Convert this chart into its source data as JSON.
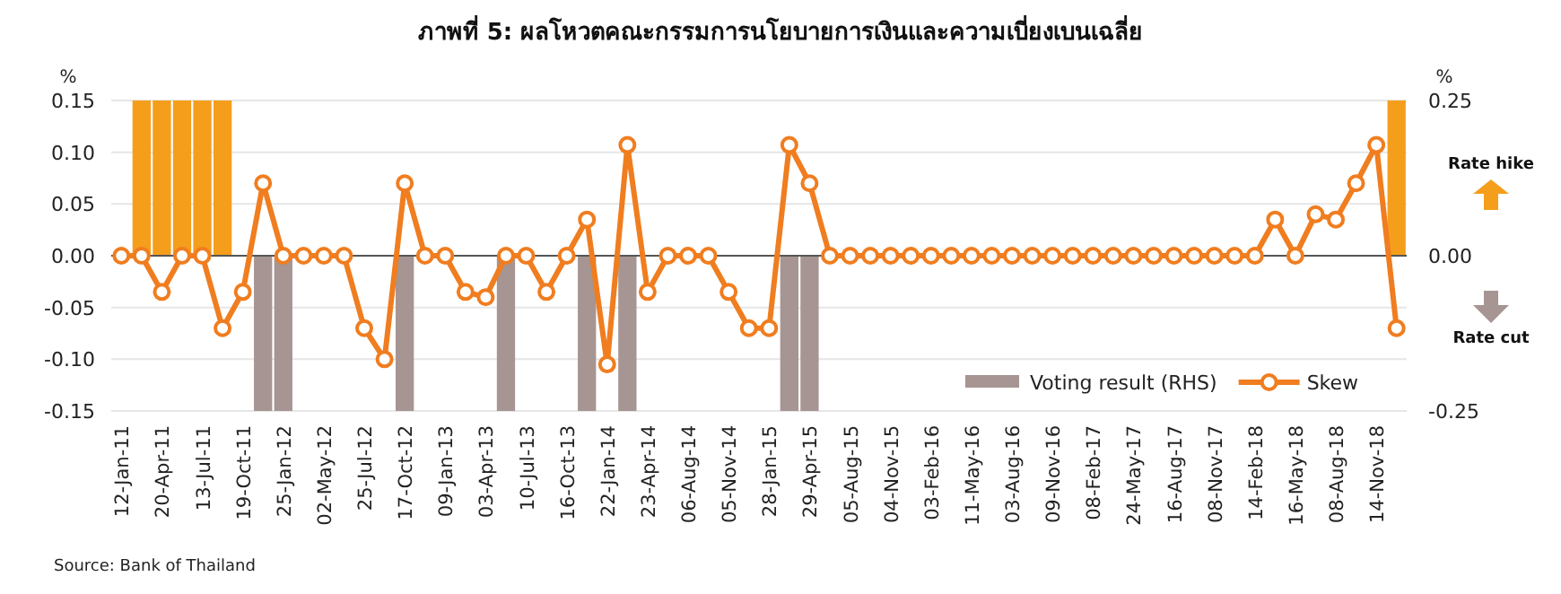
{
  "chart_data": {
    "type": "line",
    "title": "ภาพที่ 5: ผลโหวตคณะกรรมการนโยบายการเงินและความเบี่ยงเบนเฉลี่ย",
    "ylabel": "%",
    "y2label": "%",
    "categories": [
      "12-Jan-11",
      null,
      "20-Apr-11",
      null,
      "13-Jul-11",
      null,
      "19-Oct-11",
      null,
      "25-Jan-12",
      null,
      "02-May-12",
      null,
      "25-Jul-12",
      null,
      "17-Oct-12",
      null,
      "09-Jan-13",
      null,
      "03-Apr-13",
      null,
      "10-Jul-13",
      null,
      "16-Oct-13",
      null,
      "22-Jan-14",
      null,
      "23-Apr-14",
      null,
      "06-Aug-14",
      null,
      "05-Nov-14",
      null,
      "28-Jan-15",
      null,
      "29-Apr-15",
      null,
      "05-Aug-15",
      null,
      "04-Nov-15",
      null,
      "03-Feb-16",
      null,
      "11-May-16",
      null,
      "03-Aug-16",
      null,
      "09-Nov-16",
      null,
      "08-Feb-17",
      null,
      "24-May-17",
      null,
      "16-Aug-17",
      null,
      "08-Nov-17",
      null,
      "14-Feb-18",
      null,
      "16-May-18",
      null,
      "08-Aug-18",
      null,
      "14-Nov-18",
      null
    ],
    "series": [
      {
        "name": "Voting result (RHS)",
        "type": "bar",
        "axis": "y2",
        "color": "#a69592",
        "colors": [
          null,
          "#f59e1c",
          "#f59e1c",
          "#f59e1c",
          "#f59e1c",
          "#f59e1c",
          null,
          "#a69592",
          "#a69592",
          null,
          null,
          null,
          null,
          null,
          "#a69592",
          null,
          null,
          null,
          null,
          "#a69592",
          null,
          null,
          null,
          "#a69592",
          null,
          "#a69592",
          null,
          null,
          null,
          null,
          null,
          null,
          null,
          "#a69592",
          "#a69592",
          null,
          null,
          null,
          null,
          null,
          null,
          null,
          null,
          null,
          null,
          null,
          null,
          null,
          null,
          null,
          null,
          null,
          null,
          null,
          null,
          null,
          null,
          null,
          null,
          null,
          null,
          null,
          null,
          "#f59e1c"
        ],
        "values": [
          null,
          0.25,
          0.25,
          0.25,
          0.25,
          0.25,
          null,
          -0.25,
          -0.25,
          null,
          null,
          null,
          null,
          null,
          -0.25,
          null,
          null,
          null,
          null,
          -0.25,
          null,
          null,
          null,
          -0.25,
          null,
          -0.25,
          null,
          null,
          null,
          null,
          null,
          null,
          null,
          -0.25,
          -0.25,
          null,
          null,
          null,
          null,
          null,
          null,
          null,
          null,
          null,
          null,
          null,
          null,
          null,
          null,
          null,
          null,
          null,
          null,
          null,
          null,
          null,
          null,
          null,
          null,
          null,
          null,
          null,
          null,
          0.25
        ]
      },
      {
        "name": "Skew",
        "color": "#f07d1f",
        "values": [
          0,
          0,
          -0.035,
          0,
          0,
          -0.07,
          -0.035,
          0.07,
          0,
          0,
          0,
          0,
          -0.07,
          -0.1,
          0.07,
          0,
          0,
          -0.035,
          -0.04,
          0,
          0,
          -0.035,
          0,
          0.035,
          -0.105,
          0.107,
          -0.035,
          0,
          0,
          0,
          -0.035,
          -0.07,
          -0.07,
          0.107,
          0.07,
          0,
          0,
          0,
          0,
          0,
          0,
          0,
          0,
          0,
          0,
          0,
          0,
          0,
          0,
          0,
          0,
          0,
          0,
          0,
          0,
          0,
          0,
          0.035,
          0,
          0.04,
          0.035,
          0.07,
          0.107,
          -0.07
        ]
      }
    ],
    "marker": "circle",
    "grid": "y",
    "legend": "bottom right",
    "ylim": [
      -0.15,
      0.15
    ],
    "yticks": [
      {
        "value": -0.15,
        "label": "-0.15"
      },
      {
        "value": -0.1,
        "label": "-0.10"
      },
      {
        "value": -0.05,
        "label": "-0.05"
      },
      {
        "value": 0,
        "label": "0.00"
      },
      {
        "value": 0.05,
        "label": "0.05"
      },
      {
        "value": 0.1,
        "label": "0.10"
      },
      {
        "value": 0.15,
        "label": "0.15"
      }
    ],
    "y2lim": [
      -0.25,
      0.25
    ],
    "y2ticks": [
      {
        "value": -0.25,
        "label": "-0.25"
      },
      {
        "value": 0,
        "label": "0.00"
      },
      {
        "value": 0.25,
        "label": "0.25"
      }
    ],
    "annotations": [
      "Rate hike",
      "Rate cut",
      "Source:  Bank of Thailand"
    ]
  }
}
